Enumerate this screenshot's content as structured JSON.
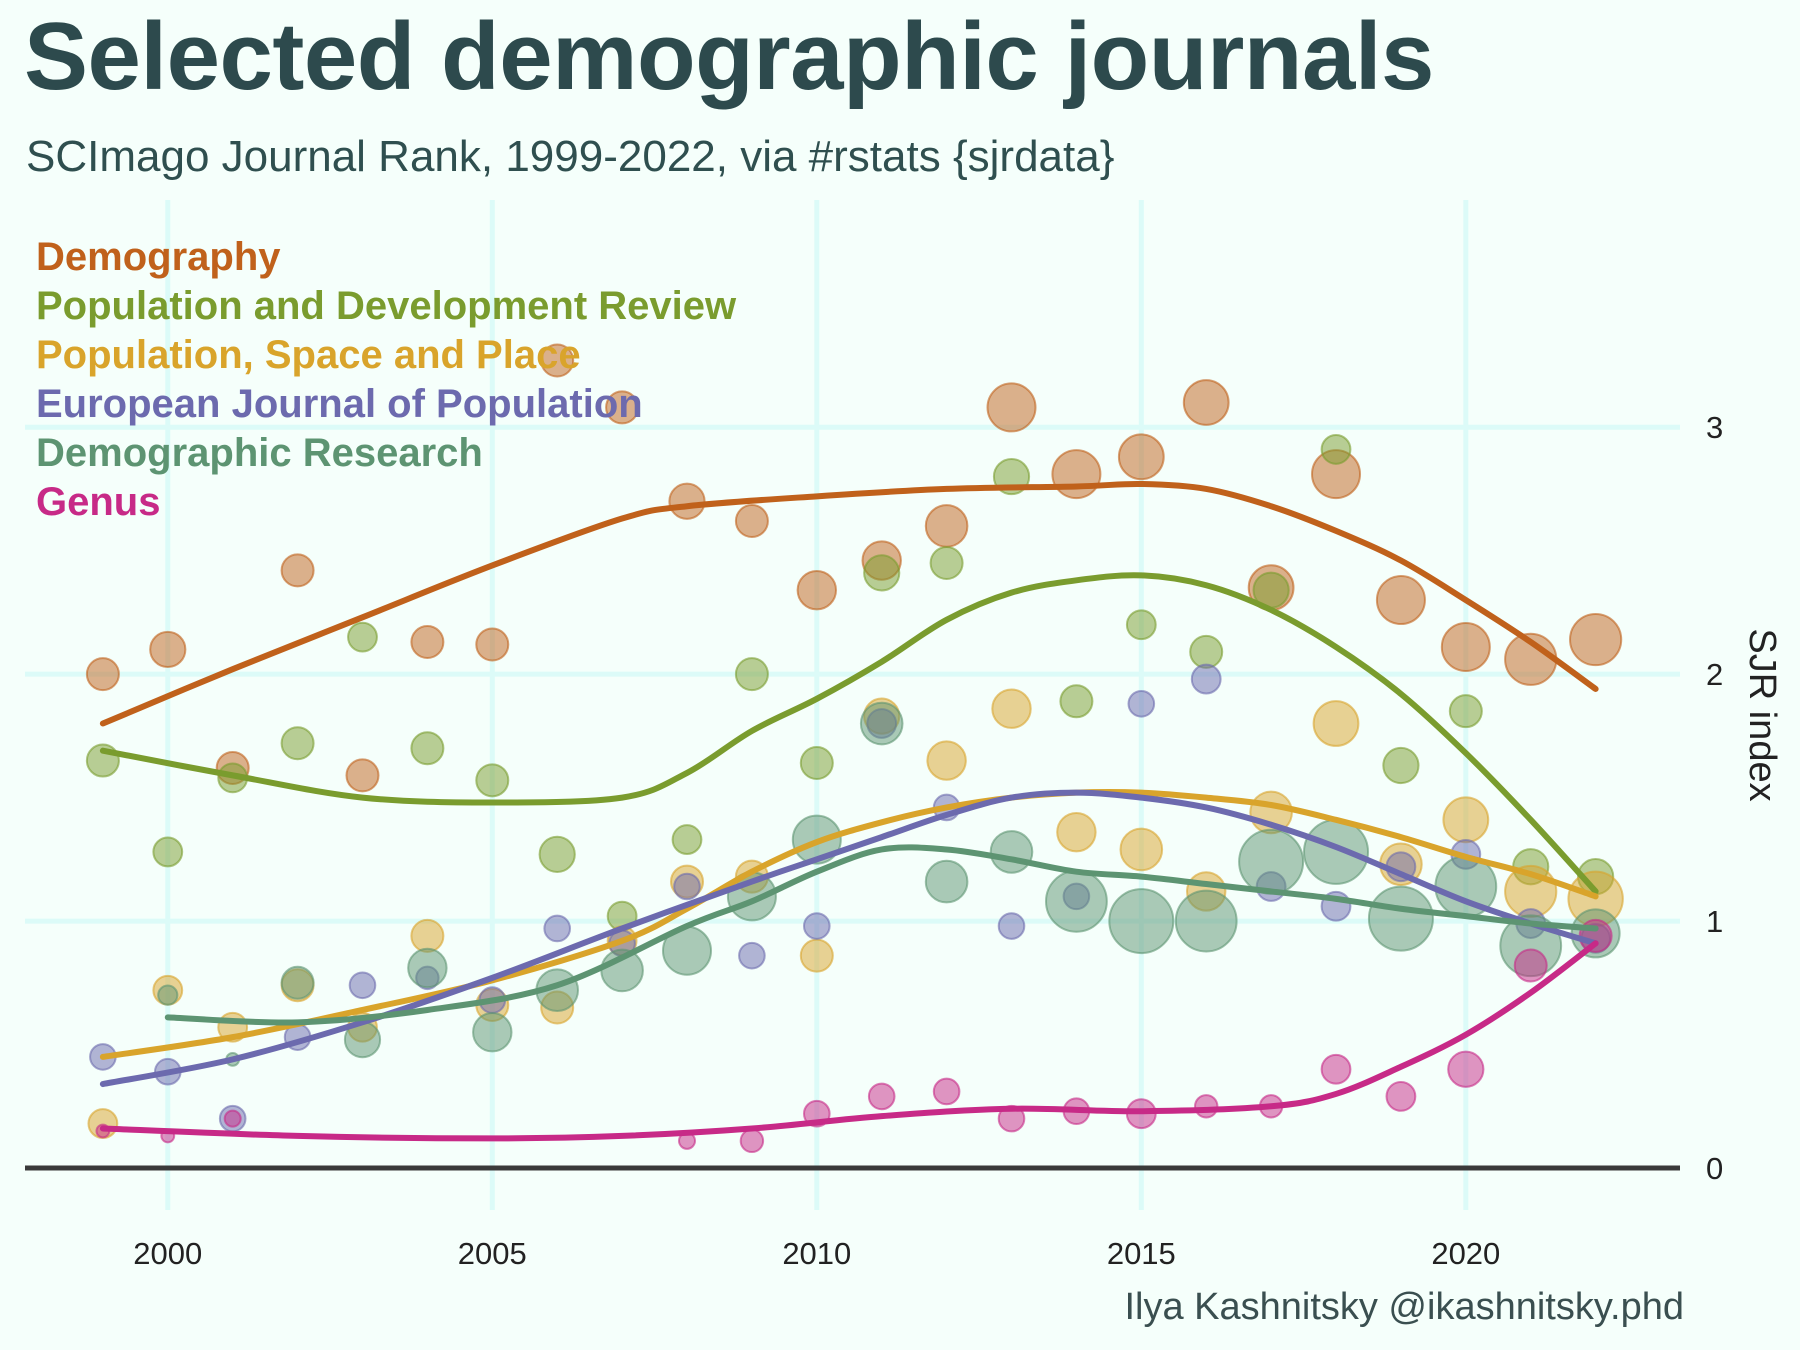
{
  "header": {
    "title": "Selected demographic journals",
    "subtitle": "SCImago Journal Rank, 1999-2022, via #rstats {sjrdata}"
  },
  "caption": "Ilya Kashnitsky @ikashnitsky.phd",
  "chart_data": {
    "type": "scatter",
    "title": "Selected demographic journals",
    "subtitle": "SCImago Journal Rank, 1999-2022, via #rstats {sjrdata}",
    "xlabel": "",
    "ylabel": "SJR index",
    "xlim": [
      1997.8,
      2023.3
    ],
    "ylim": [
      -0.17,
      3.92
    ],
    "x_ticks": [
      2000,
      2005,
      2010,
      2015,
      2020
    ],
    "y_ticks": [
      0,
      1,
      2,
      3
    ],
    "y_axis_position": "right",
    "grid": true,
    "legend_position": "top-left",
    "point_size_note": "point size varies with journal output",
    "series": [
      {
        "name": "Demography",
        "color": "#c0611b",
        "points": [
          [
            1999,
            2.0,
            1
          ],
          [
            2000,
            2.1,
            1.1
          ],
          [
            2001,
            1.62,
            1
          ],
          [
            2002,
            2.42,
            1
          ],
          [
            2003,
            1.59,
            1
          ],
          [
            2004,
            2.13,
            1
          ],
          [
            2005,
            2.12,
            1
          ],
          [
            2006,
            3.27,
            1
          ],
          [
            2007,
            3.08,
            1
          ],
          [
            2008,
            2.7,
            1.1
          ],
          [
            2009,
            2.62,
            1
          ],
          [
            2010,
            2.34,
            1.2
          ],
          [
            2011,
            2.46,
            1.2
          ],
          [
            2012,
            2.6,
            1.3
          ],
          [
            2013,
            3.08,
            1.5
          ],
          [
            2014,
            2.81,
            1.5
          ],
          [
            2015,
            2.88,
            1.4
          ],
          [
            2016,
            3.1,
            1.4
          ],
          [
            2017,
            2.35,
            1.4
          ],
          [
            2018,
            2.81,
            1.5
          ],
          [
            2019,
            2.3,
            1.5
          ],
          [
            2020,
            2.11,
            1.5
          ],
          [
            2021,
            2.06,
            1.6
          ],
          [
            2022,
            2.14,
            1.6
          ]
        ],
        "trend": [
          [
            1999,
            1.8
          ],
          [
            2001,
            2.02
          ],
          [
            2003,
            2.23
          ],
          [
            2005,
            2.44
          ],
          [
            2007,
            2.63
          ],
          [
            2008,
            2.68
          ],
          [
            2010,
            2.72
          ],
          [
            2012,
            2.75
          ],
          [
            2014,
            2.76
          ],
          [
            2015,
            2.77
          ],
          [
            2016,
            2.75
          ],
          [
            2017,
            2.68
          ],
          [
            2018,
            2.58
          ],
          [
            2019,
            2.46
          ],
          [
            2020,
            2.3
          ],
          [
            2021,
            2.13
          ],
          [
            2022,
            1.94
          ]
        ]
      },
      {
        "name": "Population and Development Review",
        "color": "#7a9c2e",
        "points": [
          [
            1999,
            1.65,
            1
          ],
          [
            2000,
            1.28,
            0.9
          ],
          [
            2001,
            1.58,
            0.9
          ],
          [
            2002,
            1.72,
            1
          ],
          [
            2003,
            2.15,
            0.9
          ],
          [
            2004,
            1.7,
            1
          ],
          [
            2005,
            1.57,
            1
          ],
          [
            2006,
            1.27,
            1.1
          ],
          [
            2007,
            1.02,
            0.9
          ],
          [
            2008,
            1.33,
            0.9
          ],
          [
            2009,
            2.0,
            1
          ],
          [
            2010,
            1.64,
            1
          ],
          [
            2011,
            2.41,
            1.1
          ],
          [
            2012,
            2.45,
            1
          ],
          [
            2013,
            2.8,
            1.1
          ],
          [
            2014,
            1.89,
            1
          ],
          [
            2015,
            2.2,
            0.9
          ],
          [
            2016,
            2.09,
            1
          ],
          [
            2017,
            2.34,
            1.1
          ],
          [
            2018,
            2.91,
            0.9
          ],
          [
            2019,
            1.63,
            1.1
          ],
          [
            2020,
            1.85,
            1
          ],
          [
            2021,
            1.22,
            1.1
          ],
          [
            2022,
            1.18,
            1.1
          ]
        ],
        "trend": [
          [
            1999,
            1.69
          ],
          [
            2001,
            1.59
          ],
          [
            2003,
            1.5
          ],
          [
            2005,
            1.48
          ],
          [
            2007,
            1.5
          ],
          [
            2008,
            1.6
          ],
          [
            2009,
            1.77
          ],
          [
            2010,
            1.9
          ],
          [
            2011,
            2.05
          ],
          [
            2012,
            2.22
          ],
          [
            2013,
            2.33
          ],
          [
            2014,
            2.38
          ],
          [
            2015,
            2.4
          ],
          [
            2016,
            2.36
          ],
          [
            2017,
            2.26
          ],
          [
            2018,
            2.11
          ],
          [
            2019,
            1.92
          ],
          [
            2020,
            1.68
          ],
          [
            2021,
            1.41
          ],
          [
            2022,
            1.12
          ]
        ]
      },
      {
        "name": "Population, Space and Place",
        "color": "#d9a42b",
        "points": [
          [
            1999,
            0.18,
            0.9
          ],
          [
            2000,
            0.72,
            0.9
          ],
          [
            2001,
            0.57,
            0.9
          ],
          [
            2002,
            0.74,
            1
          ],
          [
            2003,
            0.57,
            0.9
          ],
          [
            2004,
            0.94,
            1
          ],
          [
            2005,
            0.66,
            1
          ],
          [
            2006,
            0.65,
            1
          ],
          [
            2007,
            0.92,
            0.9
          ],
          [
            2008,
            1.16,
            1
          ],
          [
            2009,
            1.18,
            1
          ],
          [
            2010,
            0.86,
            1
          ],
          [
            2011,
            1.83,
            1.1
          ],
          [
            2012,
            1.65,
            1.2
          ],
          [
            2013,
            1.86,
            1.2
          ],
          [
            2014,
            1.36,
            1.2
          ],
          [
            2015,
            1.29,
            1.3
          ],
          [
            2016,
            1.12,
            1.2
          ],
          [
            2017,
            1.44,
            1.3
          ],
          [
            2018,
            1.8,
            1.4
          ],
          [
            2019,
            1.23,
            1.3
          ],
          [
            2020,
            1.41,
            1.4
          ],
          [
            2021,
            1.12,
            1.6
          ],
          [
            2022,
            1.09,
            1.7
          ]
        ],
        "trend": [
          [
            1999,
            0.45
          ],
          [
            2001,
            0.53
          ],
          [
            2003,
            0.64
          ],
          [
            2005,
            0.76
          ],
          [
            2007,
            0.92
          ],
          [
            2008,
            1.05
          ],
          [
            2009,
            1.2
          ],
          [
            2010,
            1.32
          ],
          [
            2011,
            1.4
          ],
          [
            2012,
            1.46
          ],
          [
            2013,
            1.5
          ],
          [
            2014,
            1.52
          ],
          [
            2015,
            1.52
          ],
          [
            2016,
            1.5
          ],
          [
            2017,
            1.47
          ],
          [
            2018,
            1.41
          ],
          [
            2019,
            1.34
          ],
          [
            2020,
            1.26
          ],
          [
            2021,
            1.19
          ],
          [
            2022,
            1.1
          ]
        ]
      },
      {
        "name": "European Journal of Population",
        "color": "#6c6aae",
        "points": [
          [
            1999,
            0.45,
            0.8
          ],
          [
            2000,
            0.39,
            0.8
          ],
          [
            2001,
            0.2,
            0.8
          ],
          [
            2002,
            0.53,
            0.8
          ],
          [
            2003,
            0.74,
            0.8
          ],
          [
            2004,
            0.77,
            0.7
          ],
          [
            2005,
            0.68,
            0.8
          ],
          [
            2006,
            0.97,
            0.8
          ],
          [
            2007,
            0.91,
            0.8
          ],
          [
            2008,
            1.14,
            0.8
          ],
          [
            2009,
            0.86,
            0.8
          ],
          [
            2010,
            0.98,
            0.8
          ],
          [
            2011,
            1.8,
            0.9
          ],
          [
            2012,
            1.46,
            0.8
          ],
          [
            2013,
            0.98,
            0.8
          ],
          [
            2014,
            1.1,
            0.8
          ],
          [
            2015,
            1.88,
            0.8
          ],
          [
            2016,
            1.98,
            0.9
          ],
          [
            2017,
            1.14,
            0.9
          ],
          [
            2018,
            1.06,
            0.9
          ],
          [
            2019,
            1.22,
            0.9
          ],
          [
            2020,
            1.27,
            0.9
          ],
          [
            2021,
            0.99,
            0.9
          ],
          [
            2022,
            0.93,
            0.9
          ]
        ],
        "trend": [
          [
            1999,
            0.34
          ],
          [
            2001,
            0.44
          ],
          [
            2003,
            0.59
          ],
          [
            2005,
            0.77
          ],
          [
            2007,
            0.97
          ],
          [
            2009,
            1.16
          ],
          [
            2010,
            1.25
          ],
          [
            2011,
            1.34
          ],
          [
            2012,
            1.43
          ],
          [
            2013,
            1.5
          ],
          [
            2014,
            1.52
          ],
          [
            2015,
            1.5
          ],
          [
            2016,
            1.46
          ],
          [
            2017,
            1.39
          ],
          [
            2018,
            1.3
          ],
          [
            2019,
            1.19
          ],
          [
            2020,
            1.08
          ],
          [
            2021,
            0.99
          ],
          [
            2022,
            0.91
          ]
        ]
      },
      {
        "name": "Demographic Research",
        "color": "#5d9472",
        "points": [
          [
            2000,
            0.7,
            0.6
          ],
          [
            2001,
            0.44,
            0.4
          ],
          [
            2002,
            0.75,
            1
          ],
          [
            2003,
            0.52,
            1.1
          ],
          [
            2004,
            0.81,
            1.2
          ],
          [
            2005,
            0.55,
            1.2
          ],
          [
            2006,
            0.72,
            1.3
          ],
          [
            2007,
            0.8,
            1.3
          ],
          [
            2008,
            0.88,
            1.5
          ],
          [
            2009,
            1.1,
            1.5
          ],
          [
            2010,
            1.33,
            1.5
          ],
          [
            2011,
            1.8,
            1.3
          ],
          [
            2012,
            1.16,
            1.3
          ],
          [
            2013,
            1.28,
            1.3
          ],
          [
            2014,
            1.08,
            1.9
          ],
          [
            2015,
            1.0,
            2.0
          ],
          [
            2016,
            1.0,
            1.9
          ],
          [
            2017,
            1.24,
            2.0
          ],
          [
            2018,
            1.28,
            2.0
          ],
          [
            2019,
            1.01,
            2.0
          ],
          [
            2020,
            1.14,
            1.9
          ],
          [
            2021,
            0.9,
            1.9
          ],
          [
            2022,
            0.95,
            1.5
          ]
        ],
        "trend": [
          [
            2000,
            0.61
          ],
          [
            2002,
            0.59
          ],
          [
            2004,
            0.64
          ],
          [
            2006,
            0.74
          ],
          [
            2008,
            0.98
          ],
          [
            2009,
            1.08
          ],
          [
            2010,
            1.2
          ],
          [
            2011,
            1.29
          ],
          [
            2012,
            1.29
          ],
          [
            2013,
            1.25
          ],
          [
            2014,
            1.2
          ],
          [
            2015,
            1.18
          ],
          [
            2016,
            1.15
          ],
          [
            2017,
            1.12
          ],
          [
            2018,
            1.09
          ],
          [
            2019,
            1.05
          ],
          [
            2020,
            1.02
          ],
          [
            2021,
            0.99
          ],
          [
            2022,
            0.97
          ]
        ]
      },
      {
        "name": "Genus",
        "color": "#c72a87",
        "points": [
          [
            1999,
            0.15,
            0.4
          ],
          [
            2000,
            0.13,
            0.4
          ],
          [
            2001,
            0.2,
            0.5
          ],
          [
            2008,
            0.11,
            0.5
          ],
          [
            2009,
            0.11,
            0.7
          ],
          [
            2010,
            0.22,
            0.8
          ],
          [
            2011,
            0.29,
            0.8
          ],
          [
            2012,
            0.31,
            0.8
          ],
          [
            2013,
            0.2,
            0.8
          ],
          [
            2014,
            0.23,
            0.8
          ],
          [
            2015,
            0.22,
            0.9
          ],
          [
            2016,
            0.25,
            0.7
          ],
          [
            2017,
            0.25,
            0.7
          ],
          [
            2018,
            0.4,
            0.9
          ],
          [
            2019,
            0.29,
            0.9
          ],
          [
            2020,
            0.4,
            1.1
          ],
          [
            2021,
            0.82,
            1.0
          ],
          [
            2022,
            0.94,
            1.0
          ]
        ],
        "trend": [
          [
            1999,
            0.16
          ],
          [
            2002,
            0.13
          ],
          [
            2005,
            0.12
          ],
          [
            2007,
            0.13
          ],
          [
            2009,
            0.16
          ],
          [
            2011,
            0.21
          ],
          [
            2013,
            0.24
          ],
          [
            2015,
            0.23
          ],
          [
            2017,
            0.25
          ],
          [
            2018,
            0.3
          ],
          [
            2019,
            0.41
          ],
          [
            2020,
            0.54
          ],
          [
            2021,
            0.71
          ],
          [
            2022,
            0.91
          ]
        ]
      }
    ]
  }
}
